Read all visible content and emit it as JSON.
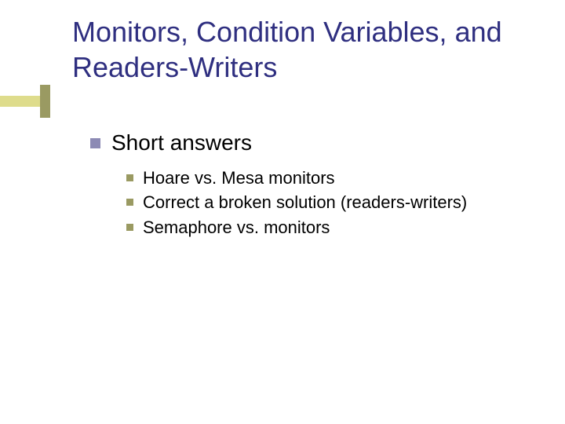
{
  "colors": {
    "title": "#2f2f80",
    "body": "#000000",
    "accent_a": "#dedc8c",
    "accent_b": "#9a9a62",
    "bullet_a": "#8c8ab4",
    "bullet_b": "#9a9a62",
    "background": "#ffffff"
  },
  "typography": {
    "title_fontsize": 36,
    "lvl1_fontsize": 28,
    "lvl2_fontsize": 22,
    "font_family": "Verdana"
  },
  "title": "Monitors, Condition Variables, and Readers-Writers",
  "lvl1": {
    "label": "Short answers"
  },
  "lvl2": [
    {
      "label": "Hoare vs. Mesa monitors"
    },
    {
      "label": "Correct a broken solution (readers-writers)"
    },
    {
      "label": "Semaphore vs. monitors"
    }
  ]
}
